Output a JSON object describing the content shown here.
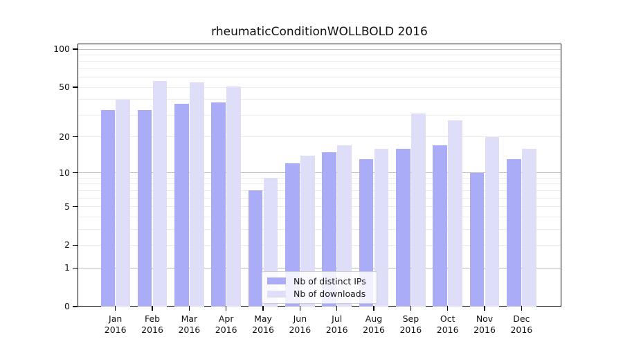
{
  "title": "rheumaticConditionWOLLBOLD 2016",
  "chart_data": {
    "type": "bar",
    "title": "rheumaticConditionWOLLBOLD 2016",
    "categories": [
      "Jan",
      "Feb",
      "Mar",
      "Apr",
      "May",
      "Jun",
      "Jul",
      "Aug",
      "Sep",
      "Oct",
      "Nov",
      "Dec"
    ],
    "category_year": "2016",
    "series": [
      {
        "name": "Nb of distinct IPs",
        "color": "#abacf8",
        "values": [
          33,
          33,
          37,
          38,
          7,
          12,
          15,
          13,
          16,
          17,
          10,
          13
        ]
      },
      {
        "name": "Nb of downloads",
        "color": "#dedef8",
        "values": [
          40,
          56,
          55,
          51,
          9,
          14,
          17,
          16,
          31,
          27,
          20,
          16
        ]
      }
    ],
    "y_ticks": [
      0,
      1,
      2,
      5,
      10,
      20,
      50,
      100
    ],
    "y_scale": "log10(1+v)",
    "ylim": [
      0,
      110
    ],
    "xlabel": "",
    "ylabel": "",
    "grid": true,
    "legend_position": "lower-center"
  },
  "legend": {
    "items": [
      {
        "label": "Nb of distinct IPs",
        "color": "#abacf8"
      },
      {
        "label": "Nb of downloads",
        "color": "#dedef8"
      }
    ]
  },
  "colors": {
    "ips_bar": "#abacf8",
    "downloads_bar": "#dedef8",
    "major_grid": "#bdbdbd",
    "minor_grid": "#ebebeb",
    "frame": "#000000"
  }
}
